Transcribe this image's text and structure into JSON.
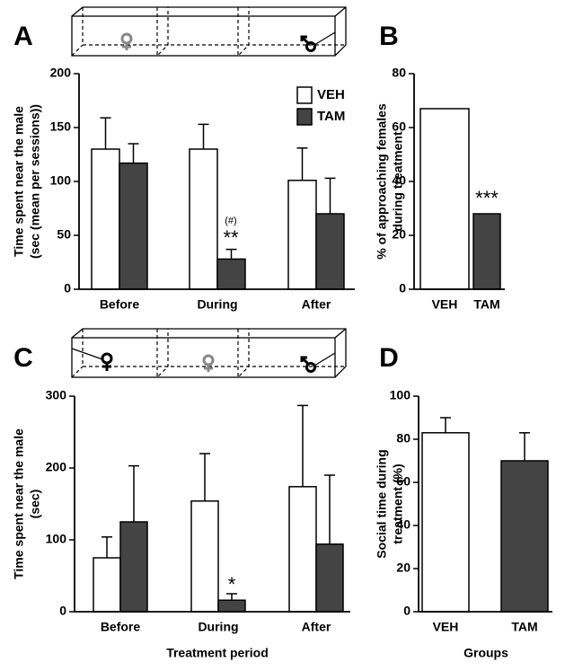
{
  "chart_data": [
    {
      "type": "bar",
      "panel": "A",
      "ylabel": [
        "Time spent near the male",
        "(sec (mean per sessions))"
      ],
      "categories": [
        "Before",
        "During",
        "After"
      ],
      "series": [
        {
          "name": "VEH",
          "color": "#ffffff",
          "values": [
            130,
            130,
            101
          ],
          "errors": [
            29,
            23,
            30
          ]
        },
        {
          "name": "TAM",
          "color": "#444444",
          "values": [
            117,
            28,
            70
          ],
          "errors": [
            18,
            9,
            33
          ]
        }
      ],
      "ylim": [
        0,
        200
      ],
      "yticks": [
        0,
        50,
        100,
        150,
        200
      ],
      "annotations": [
        "(#)",
        "**"
      ]
    },
    {
      "type": "bar",
      "panel": "B",
      "ylabel": [
        "% of approaching females",
        "during treatment"
      ],
      "categories": [
        "VEH",
        "TAM"
      ],
      "values": [
        67,
        28
      ],
      "colors": [
        "#ffffff",
        "#444444"
      ],
      "ylim": [
        0,
        80
      ],
      "yticks": [
        0,
        20,
        40,
        60,
        80
      ],
      "annotations": [
        "***"
      ]
    },
    {
      "type": "bar",
      "panel": "C",
      "ylabel": [
        "Time spent near the male",
        "(sec)"
      ],
      "xlabel": "Treatment period",
      "categories": [
        "Before",
        "During",
        "After"
      ],
      "series": [
        {
          "color": "#ffffff",
          "values": [
            75,
            154,
            174
          ],
          "errors": [
            29,
            66,
            113
          ]
        },
        {
          "color": "#444444",
          "values": [
            125,
            16,
            94
          ],
          "errors": [
            78,
            9,
            96
          ]
        }
      ],
      "ylim": [
        0,
        300
      ],
      "yticks": [
        0,
        100,
        200,
        300
      ],
      "annotations": [
        "*"
      ]
    },
    {
      "type": "bar",
      "panel": "D",
      "ylabel": [
        "Social time during",
        "treatment (%)"
      ],
      "xlabel": "Groups",
      "categories": [
        "VEH",
        "TAM"
      ],
      "values": [
        83,
        70
      ],
      "errors": [
        7,
        13
      ],
      "colors": [
        "#ffffff",
        "#444444"
      ],
      "ylim": [
        0,
        100
      ],
      "yticks": [
        0,
        20,
        40,
        60,
        80,
        100
      ]
    }
  ]
}
